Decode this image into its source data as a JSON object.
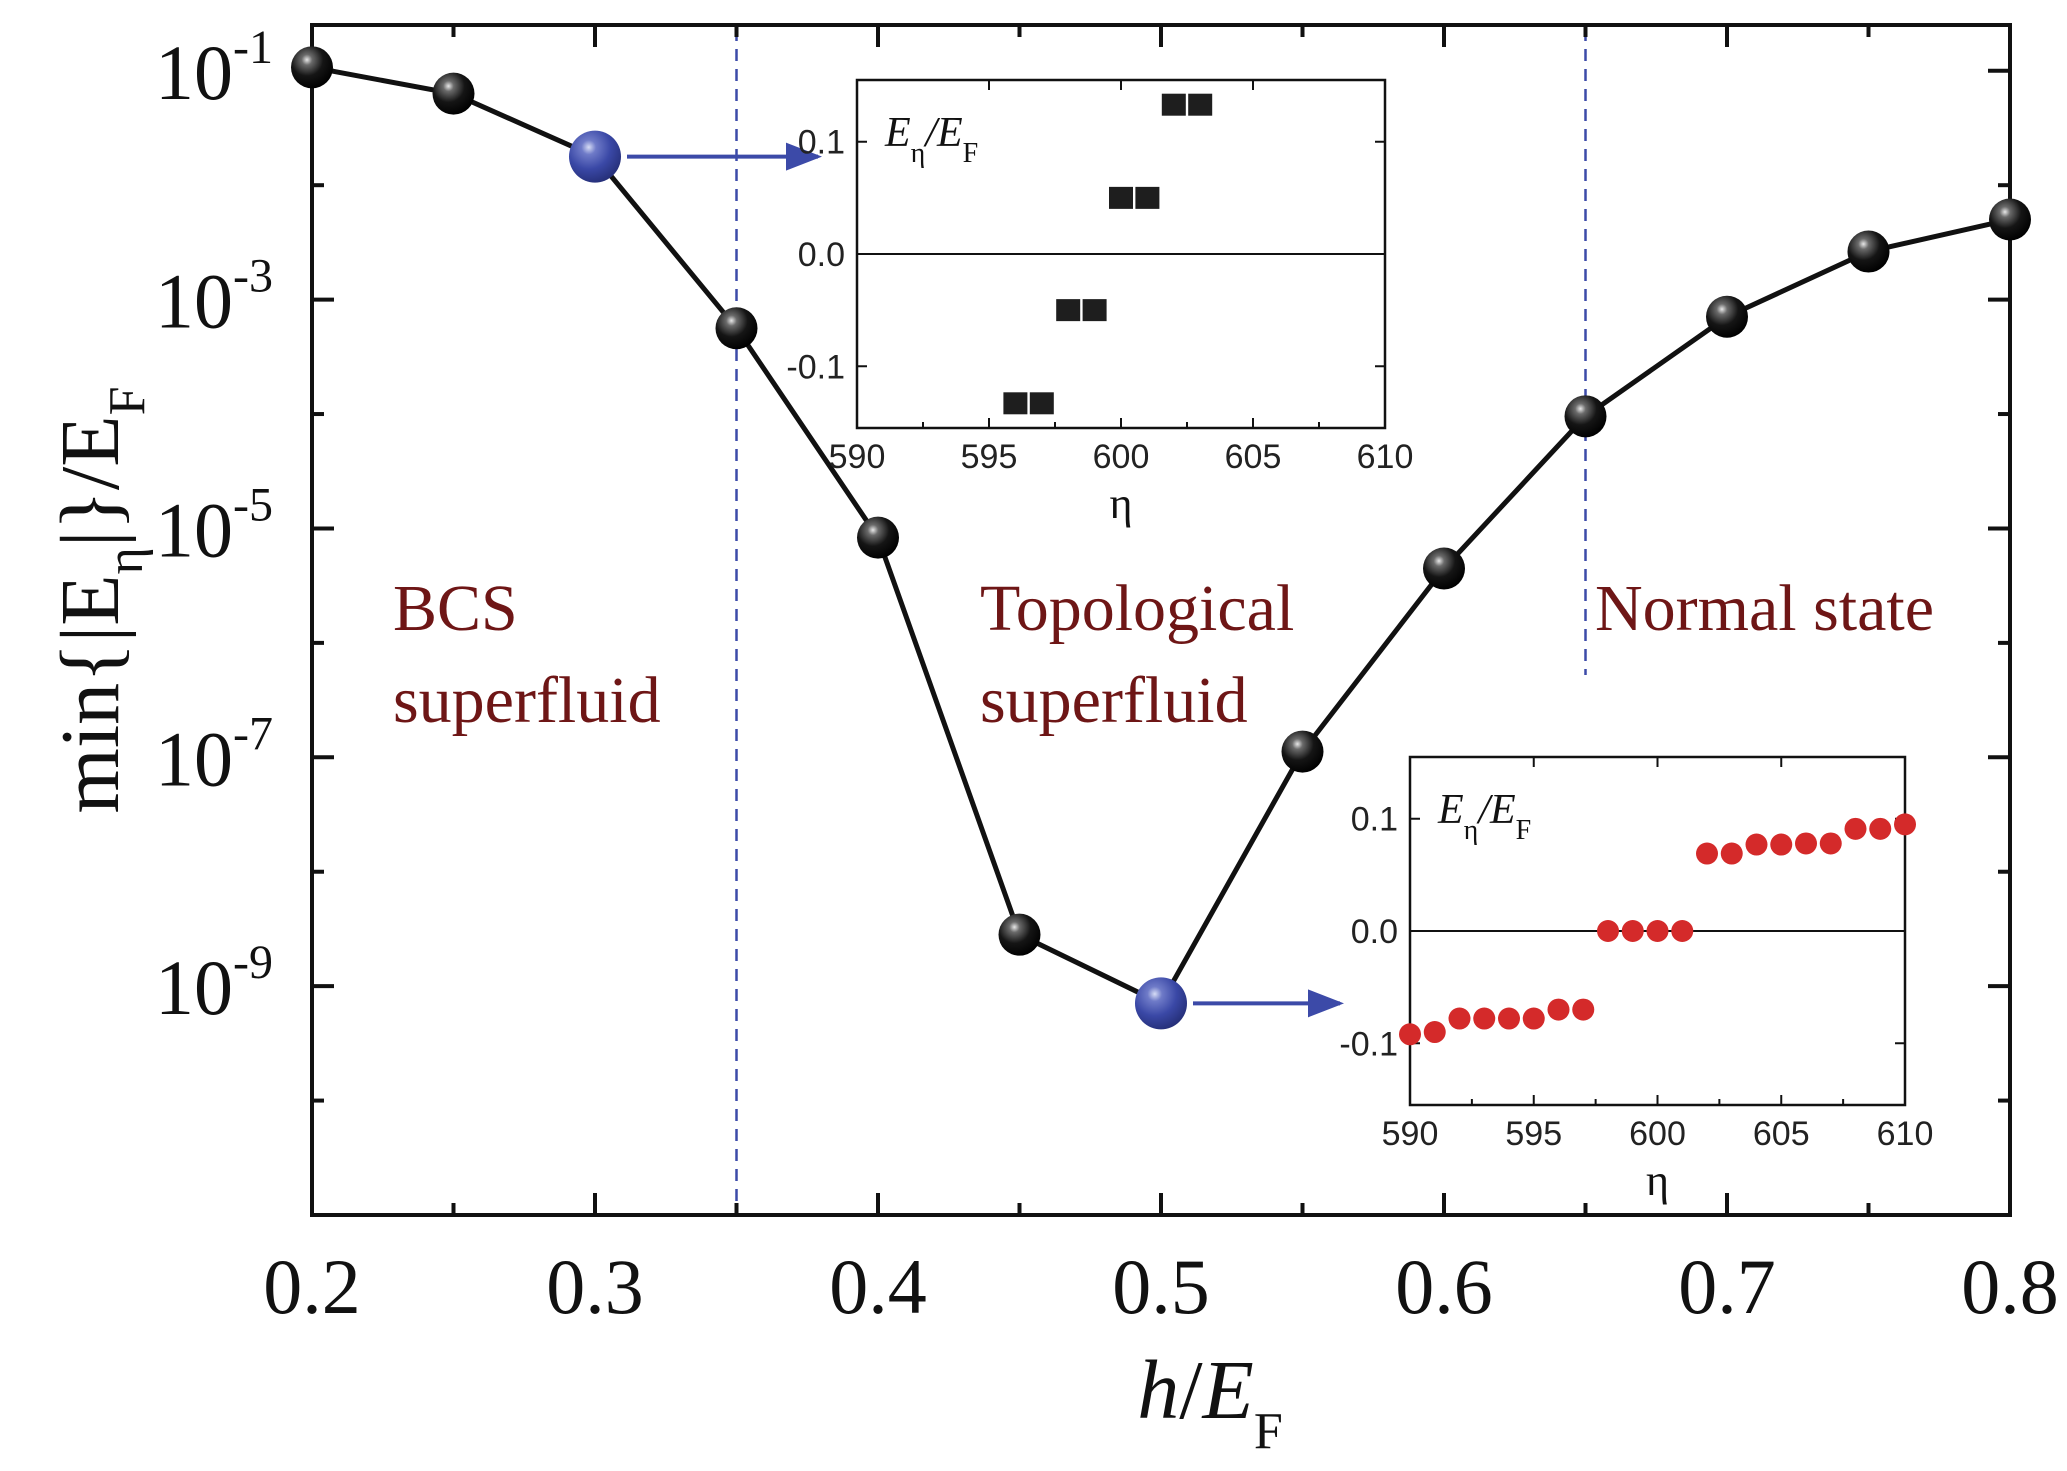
{
  "chart_data": {
    "type": "scatter",
    "title": "",
    "xlabel_main": "h",
    "xlabel_den": "E",
    "xlabel_sub": "F",
    "ylabel_text": "min{|E",
    "ylabel_eta": "η",
    "ylabel_close": "|}/E",
    "ylabel_sub": "F",
    "xlim": [
      0.2,
      0.8
    ],
    "ylim_log10": [
      -11,
      -0.6
    ],
    "xticks": [
      0.2,
      0.3,
      0.4,
      0.5,
      0.6,
      0.7,
      0.8
    ],
    "xtick_labels": [
      "0.2",
      "0.3",
      "0.4",
      "0.5",
      "0.6",
      "0.7",
      "0.8"
    ],
    "ytick_labels": [
      {
        "base": "10",
        "exp": "-1",
        "log10": -1
      },
      {
        "base": "10",
        "exp": "-3",
        "log10": -3
      },
      {
        "base": "10",
        "exp": "-5",
        "log10": -5
      },
      {
        "base": "10",
        "exp": "-7",
        "log10": -7
      },
      {
        "base": "10",
        "exp": "-9",
        "log10": -9
      }
    ],
    "series": [
      {
        "name": "min |E_eta| / E_F",
        "x": [
          0.2,
          0.25,
          0.3,
          0.35,
          0.4,
          0.45,
          0.5,
          0.55,
          0.6,
          0.65,
          0.7,
          0.75,
          0.8
        ],
        "log10_y": [
          -0.97,
          -1.2,
          -1.75,
          -3.25,
          -5.08,
          -8.55,
          -9.15,
          -6.95,
          -5.35,
          -4.02,
          -3.15,
          -2.58,
          -2.3
        ],
        "highlighted_x": [
          0.3,
          0.5
        ],
        "color": "#111111",
        "highlight_color": "#3c4aa8"
      }
    ],
    "phase_boundaries_x": [
      0.35,
      0.65
    ],
    "regions": [
      {
        "line1": "BCS",
        "line2": "superfluid"
      },
      {
        "line1": "Topological",
        "line2": "superfluid"
      },
      {
        "line1": "Normal state",
        "line2": ""
      }
    ],
    "insets": [
      {
        "name": "top-inset",
        "marker": "square",
        "color": "#1e1e1e",
        "xlabel": "η",
        "ylabel_main": "E",
        "ylabel_eta": "η",
        "ylabel_den": "/E",
        "ylabel_sub": "F",
        "xlim": [
          590,
          610
        ],
        "ylim": [
          -0.155,
          0.155
        ],
        "xticks": [
          590,
          595,
          600,
          605,
          610
        ],
        "xtick_labels": [
          "590",
          "595",
          "600",
          "605",
          "610"
        ],
        "yticks": [
          -0.1,
          0.0,
          0.1
        ],
        "ytick_labels": [
          "-0.1",
          "0.0",
          "0.1"
        ],
        "x": [
          596,
          597,
          598,
          599,
          600,
          601,
          602,
          603
        ],
        "y": [
          -0.133,
          -0.133,
          -0.05,
          -0.05,
          0.05,
          0.05,
          0.133,
          0.133
        ]
      },
      {
        "name": "bottom-inset",
        "marker": "circle",
        "color": "#d42a2a",
        "xlabel": "η",
        "ylabel_main": "E",
        "ylabel_eta": "η",
        "ylabel_den": "/E",
        "ylabel_sub": "F",
        "xlim": [
          590,
          610
        ],
        "ylim": [
          -0.155,
          0.155
        ],
        "xticks": [
          590,
          595,
          600,
          605,
          610
        ],
        "xtick_labels": [
          "590",
          "595",
          "600",
          "605",
          "610"
        ],
        "yticks": [
          -0.1,
          0.0,
          0.1
        ],
        "ytick_labels": [
          "-0.1",
          "0.0",
          "0.1"
        ],
        "x": [
          590,
          591,
          592,
          593,
          594,
          595,
          596,
          597,
          598,
          599,
          600,
          601,
          602,
          603,
          604,
          605,
          606,
          607,
          608,
          609,
          610
        ],
        "y": [
          -0.092,
          -0.09,
          -0.078,
          -0.078,
          -0.078,
          -0.078,
          -0.07,
          -0.07,
          0.0,
          0.0,
          0.0,
          0.0,
          0.069,
          0.069,
          0.077,
          0.077,
          0.078,
          0.078,
          0.091,
          0.091,
          0.095
        ]
      }
    ]
  }
}
